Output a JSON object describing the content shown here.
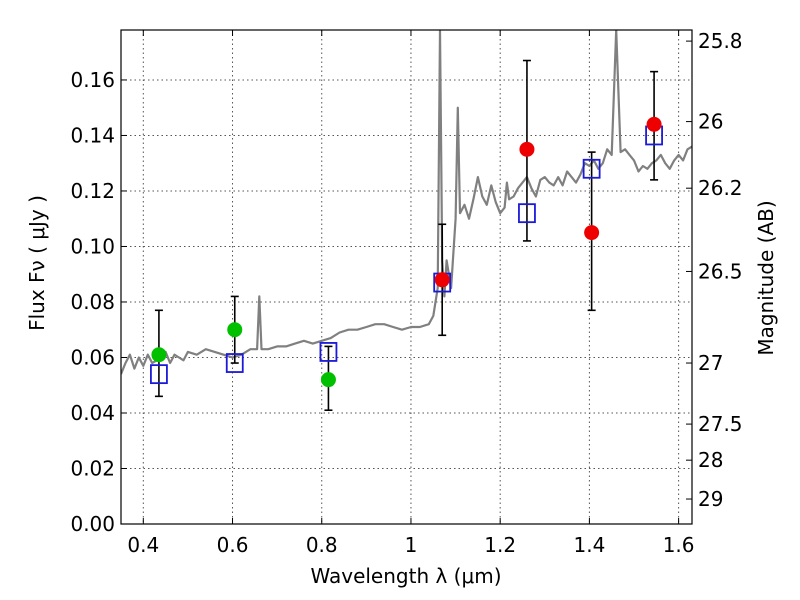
{
  "chart_data": {
    "type": "scatter",
    "xlabel": "Wavelength  λ (μm)",
    "ylabel": "Flux  Fν  ( μJy )",
    "y2label": "Magnitude (AB)",
    "xlim": [
      0.35,
      1.63
    ],
    "ylim": [
      0.0,
      0.178
    ],
    "grid": true,
    "x_ticks": [
      0.4,
      0.6,
      0.8,
      1.0,
      1.2,
      1.4,
      1.6
    ],
    "x_tick_labels": [
      "0.4",
      "0.6",
      "0.8",
      "1",
      "1.2",
      "1.4",
      "1.6"
    ],
    "y_ticks": [
      0.0,
      0.02,
      0.04,
      0.06,
      0.08,
      0.1,
      0.12,
      0.14,
      0.16
    ],
    "y_tick_labels": [
      "0.00",
      "0.02",
      "0.04",
      "0.06",
      "0.08",
      "0.10",
      "0.12",
      "0.14",
      "0.16"
    ],
    "y2_ticks": [
      {
        "label": "25.8",
        "flux": 0.174
      },
      {
        "label": "26",
        "flux": 0.145
      },
      {
        "label": "26.2",
        "flux": 0.121
      },
      {
        "label": "26.5",
        "flux": 0.091
      },
      {
        "label": "27",
        "flux": 0.058
      },
      {
        "label": "27.5",
        "flux": 0.036
      },
      {
        "label": "28",
        "flux": 0.023
      },
      {
        "label": "29",
        "flux": 0.009
      }
    ],
    "series": [
      {
        "color": "#808080",
        "kind": "line",
        "x": [
          0.35,
          0.36,
          0.37,
          0.38,
          0.39,
          0.4,
          0.41,
          0.42,
          0.43,
          0.44,
          0.45,
          0.46,
          0.47,
          0.48,
          0.49,
          0.5,
          0.52,
          0.54,
          0.56,
          0.58,
          0.6,
          0.62,
          0.64,
          0.655,
          0.66,
          0.665,
          0.68,
          0.7,
          0.72,
          0.74,
          0.76,
          0.78,
          0.8,
          0.82,
          0.84,
          0.86,
          0.88,
          0.9,
          0.92,
          0.94,
          0.96,
          0.98,
          1.0,
          1.02,
          1.04,
          1.05,
          1.06,
          1.065,
          1.07,
          1.075,
          1.08,
          1.09,
          1.1,
          1.105,
          1.11,
          1.12,
          1.13,
          1.14,
          1.15,
          1.16,
          1.17,
          1.18,
          1.19,
          1.2,
          1.21,
          1.215,
          1.22,
          1.23,
          1.24,
          1.25,
          1.26,
          1.27,
          1.28,
          1.29,
          1.3,
          1.31,
          1.32,
          1.33,
          1.34,
          1.35,
          1.36,
          1.37,
          1.38,
          1.39,
          1.4,
          1.41,
          1.42,
          1.43,
          1.44,
          1.45,
          1.46,
          1.47,
          1.48,
          1.49,
          1.5,
          1.51,
          1.52,
          1.53,
          1.54,
          1.55,
          1.56,
          1.57,
          1.58,
          1.59,
          1.6,
          1.61,
          1.62,
          1.63
        ],
        "y": [
          0.054,
          0.058,
          0.061,
          0.056,
          0.06,
          0.057,
          0.061,
          0.058,
          0.059,
          0.06,
          0.062,
          0.058,
          0.061,
          0.06,
          0.059,
          0.062,
          0.061,
          0.063,
          0.062,
          0.061,
          0.06,
          0.061,
          0.063,
          0.063,
          0.082,
          0.063,
          0.063,
          0.064,
          0.064,
          0.065,
          0.066,
          0.065,
          0.066,
          0.067,
          0.069,
          0.07,
          0.07,
          0.071,
          0.072,
          0.072,
          0.071,
          0.07,
          0.071,
          0.071,
          0.072,
          0.075,
          0.085,
          0.178,
          0.095,
          0.082,
          0.095,
          0.085,
          0.11,
          0.15,
          0.112,
          0.115,
          0.11,
          0.117,
          0.125,
          0.118,
          0.115,
          0.122,
          0.116,
          0.112,
          0.114,
          0.123,
          0.117,
          0.118,
          0.121,
          0.123,
          0.125,
          0.121,
          0.118,
          0.124,
          0.125,
          0.123,
          0.122,
          0.125,
          0.122,
          0.127,
          0.125,
          0.123,
          0.126,
          0.13,
          0.129,
          0.131,
          0.128,
          0.13,
          0.135,
          0.133,
          0.178,
          0.134,
          0.135,
          0.133,
          0.131,
          0.127,
          0.129,
          0.128,
          0.13,
          0.131,
          0.133,
          0.13,
          0.128,
          0.131,
          0.133,
          0.131,
          0.135,
          0.136
        ]
      },
      {
        "color": "#1a1ad8",
        "kind": "open-square",
        "x": [
          0.435,
          0.605,
          0.815,
          1.07,
          1.26,
          1.405,
          1.545
        ],
        "y": [
          0.054,
          0.058,
          0.062,
          0.087,
          0.112,
          0.128,
          0.14
        ]
      },
      {
        "color": "#00c000",
        "kind": "filled-circle",
        "x": [
          0.435,
          0.605,
          0.815
        ],
        "y": [
          0.061,
          0.07,
          0.052
        ]
      },
      {
        "color": "#ee0000",
        "kind": "filled-circle",
        "x": [
          1.07,
          1.26,
          1.405,
          1.545
        ],
        "y": [
          0.088,
          0.135,
          0.105,
          0.144
        ]
      }
    ],
    "error_bars": [
      {
        "x": 0.435,
        "low": 0.046,
        "high": 0.077
      },
      {
        "x": 0.605,
        "low": 0.058,
        "high": 0.082
      },
      {
        "x": 0.815,
        "low": 0.041,
        "high": 0.064
      },
      {
        "x": 1.07,
        "low": 0.068,
        "high": 0.108
      },
      {
        "x": 1.26,
        "low": 0.102,
        "high": 0.167
      },
      {
        "x": 1.405,
        "low": 0.077,
        "high": 0.134
      },
      {
        "x": 1.545,
        "low": 0.124,
        "high": 0.163
      }
    ]
  }
}
